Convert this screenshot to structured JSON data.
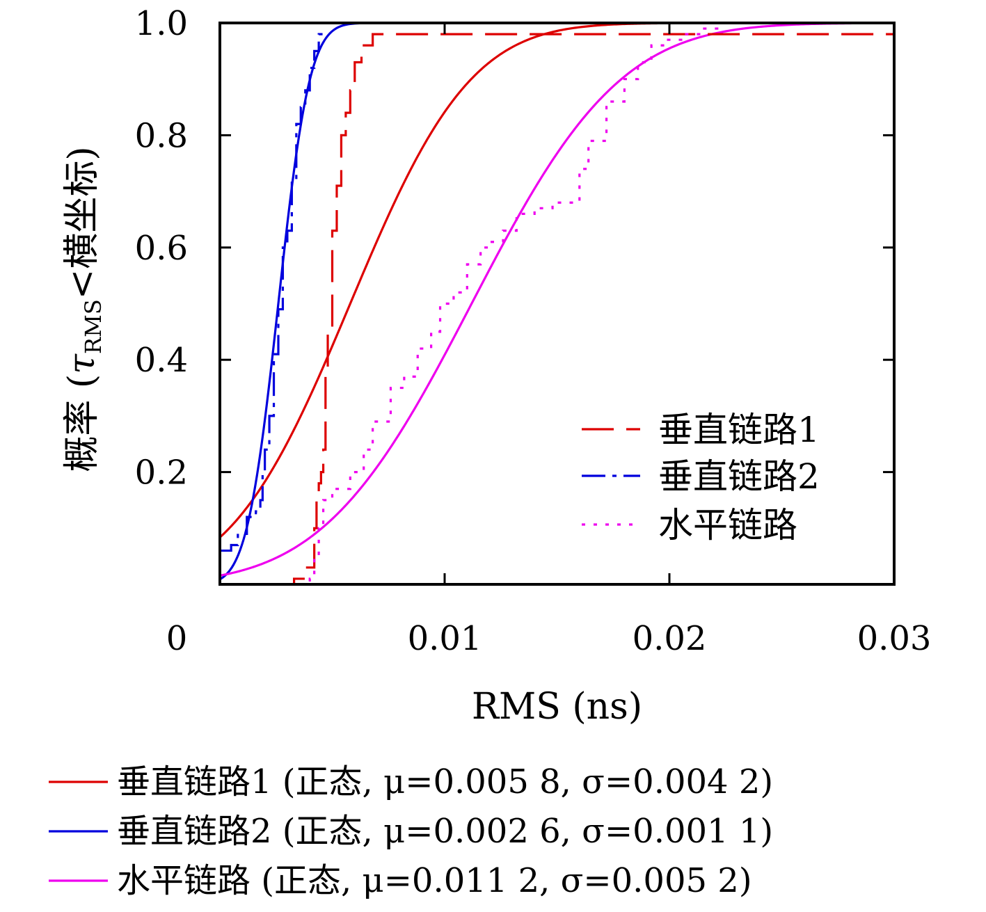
{
  "chart_data": {
    "type": "line",
    "xlabel": "RMS (ns)",
    "ylabel": "概率 (τRMS<横坐标)",
    "ylabel_parts": {
      "prefix": "概率 (",
      "tau": "τ",
      "sub": "RMS",
      "suffix": "<横坐标)"
    },
    "xlim": [
      0,
      0.03
    ],
    "ylim": [
      0,
      1.0
    ],
    "x_ticks": [
      0,
      0.01,
      0.02,
      0.03
    ],
    "x_tick_labels": [
      "0",
      "0.01",
      "0.02",
      "0.03"
    ],
    "y_ticks": [
      0.2,
      0.4,
      0.6,
      0.8,
      1.0
    ],
    "y_tick_labels": [
      "0.2",
      "0.4",
      "0.6",
      "0.8",
      "1.0"
    ],
    "grid": false,
    "inner_legend_position": "lower-right",
    "inner_legend": [
      {
        "label": "垂直链路1",
        "color": "#dd0000",
        "style": "dash"
      },
      {
        "label": "垂直链路2",
        "color": "#0000dd",
        "style": "dashdot"
      },
      {
        "label": "水平链路",
        "color": "#ee00ee",
        "style": "dot"
      }
    ],
    "bottom_legend": [
      {
        "label": "垂直链路1 (正态, μ=0.005 8, σ=0.004 2)",
        "color": "#dd0000"
      },
      {
        "label": "垂直链路2 (正态, μ=0.002 6, σ=0.001 1)",
        "color": "#0000dd"
      },
      {
        "label": "水平链路 (正态, μ=0.011 2, σ=0.005 2)",
        "color": "#ee00ee"
      }
    ],
    "fitted_series": [
      {
        "name": "垂直链路1 (正态, μ=0.005 8, σ=0.004 2)",
        "distribution": "normal",
        "mu": 0.0058,
        "sigma": 0.0042,
        "color": "#dd0000"
      },
      {
        "name": "垂直链路2 (正态, μ=0.002 6, σ=0.001 1)",
        "distribution": "normal",
        "mu": 0.0026,
        "sigma": 0.0011,
        "color": "#0000dd"
      },
      {
        "name": "水平链路 (正态, μ=0.011 2, σ=0.005 2)",
        "distribution": "normal",
        "mu": 0.0112,
        "sigma": 0.0052,
        "color": "#ee00ee"
      }
    ],
    "empirical_series": [
      {
        "name": "垂直链路1",
        "style": "dash",
        "color": "#dd0000",
        "x": [
          0.0026,
          0.0033,
          0.0038,
          0.0042,
          0.0043,
          0.0044,
          0.0045,
          0.0046,
          0.0047,
          0.0048,
          0.005,
          0.0052,
          0.0054,
          0.0056,
          0.0058,
          0.006,
          0.0063,
          0.0068,
          0.0072,
          0.03
        ],
        "y": [
          0.0,
          0.01,
          0.03,
          0.1,
          0.16,
          0.18,
          0.2,
          0.24,
          0.38,
          0.45,
          0.63,
          0.71,
          0.8,
          0.84,
          0.88,
          0.93,
          0.96,
          0.98,
          0.98,
          0.98
        ]
      },
      {
        "name": "垂直链路2",
        "style": "dashdot",
        "color": "#0000dd",
        "x": [
          0.0,
          0.0005,
          0.0008,
          0.0012,
          0.0016,
          0.0018,
          0.0019,
          0.002,
          0.0022,
          0.0024,
          0.0026,
          0.0028,
          0.003,
          0.0032,
          0.0034,
          0.0036,
          0.0038,
          0.004,
          0.0042,
          0.0044,
          0.0046
        ],
        "y": [
          0.06,
          0.07,
          0.09,
          0.12,
          0.13,
          0.15,
          0.2,
          0.24,
          0.3,
          0.41,
          0.49,
          0.6,
          0.63,
          0.72,
          0.82,
          0.85,
          0.88,
          0.92,
          0.95,
          0.98,
          0.99
        ]
      },
      {
        "name": "水平链路",
        "style": "dot",
        "color": "#ee00ee",
        "x": [
          0.0036,
          0.004,
          0.0042,
          0.0044,
          0.0046,
          0.005,
          0.0058,
          0.0064,
          0.0068,
          0.0076,
          0.0082,
          0.0088,
          0.0094,
          0.0098,
          0.0104,
          0.011,
          0.0116,
          0.012,
          0.0126,
          0.0132,
          0.014,
          0.0148,
          0.0154,
          0.016,
          0.0164,
          0.0172,
          0.018,
          0.0186,
          0.0192,
          0.0198,
          0.0206,
          0.0214,
          0.0222
        ],
        "y": [
          0.0,
          0.01,
          0.05,
          0.1,
          0.15,
          0.17,
          0.2,
          0.24,
          0.29,
          0.35,
          0.37,
          0.42,
          0.45,
          0.5,
          0.52,
          0.57,
          0.6,
          0.61,
          0.63,
          0.66,
          0.67,
          0.68,
          0.68,
          0.74,
          0.79,
          0.86,
          0.9,
          0.93,
          0.96,
          0.97,
          0.98,
          0.99,
          1.0
        ]
      }
    ]
  }
}
